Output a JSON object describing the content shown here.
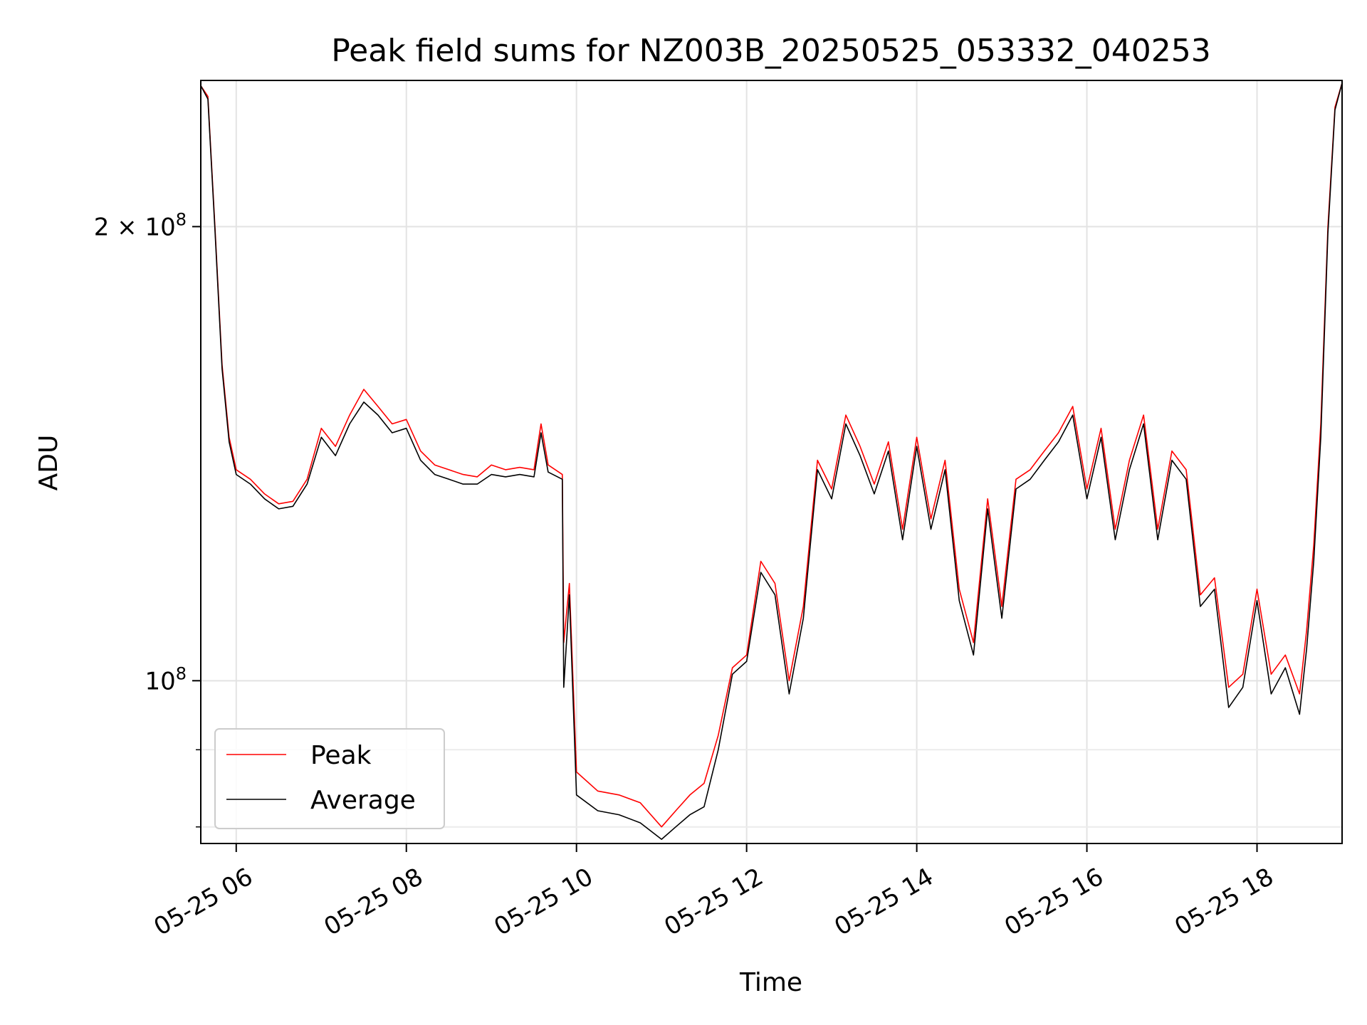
{
  "chart_data": {
    "type": "line",
    "title": "Peak field sums for NZ003B_20250525_053332_040253",
    "xlabel": "Time",
    "ylabel": "ADU",
    "x_range": [
      "2025-05-25 05:35",
      "2025-05-25 19:00"
    ],
    "ylim": [
      78000000,
      250000000
    ],
    "yscale": "log",
    "grid": true,
    "legend_position": "lower-left",
    "x_ticks": [
      "05-25 06",
      "05-25 08",
      "05-25 10",
      "05-25 12",
      "05-25 14",
      "05-25 16",
      "05-25 18"
    ],
    "y_ticks": [
      {
        "value": 100000000,
        "label": "10",
        "exp": "8"
      },
      {
        "value": 200000000,
        "label": "2 × 10",
        "exp": "8"
      }
    ],
    "colors": {
      "peak": "#ff0000",
      "average": "#000000"
    },
    "series": [
      {
        "name": "Peak",
        "color": "#ff0000",
        "points": [
          [
            "05:35",
            248000000
          ],
          [
            "05:40",
            244000000
          ],
          [
            "05:45",
            200000000
          ],
          [
            "05:50",
            162000000
          ],
          [
            "05:55",
            145000000
          ],
          [
            "06:00",
            138000000
          ],
          [
            "06:10",
            136000000
          ],
          [
            "06:20",
            133000000
          ],
          [
            "06:30",
            131000000
          ],
          [
            "06:40",
            131500000
          ],
          [
            "06:50",
            136000000
          ],
          [
            "07:00",
            147000000
          ],
          [
            "07:10",
            143000000
          ],
          [
            "07:20",
            150000000
          ],
          [
            "07:30",
            156000000
          ],
          [
            "07:40",
            152000000
          ],
          [
            "07:50",
            148000000
          ],
          [
            "08:00",
            149000000
          ],
          [
            "08:10",
            142000000
          ],
          [
            "08:20",
            139000000
          ],
          [
            "08:30",
            138000000
          ],
          [
            "08:40",
            137000000
          ],
          [
            "08:50",
            136500000
          ],
          [
            "09:00",
            139000000
          ],
          [
            "09:10",
            138000000
          ],
          [
            "09:20",
            138500000
          ],
          [
            "09:30",
            138000000
          ],
          [
            "09:35",
            148000000
          ],
          [
            "09:40",
            139000000
          ],
          [
            "09:50",
            137000000
          ],
          [
            "09:51",
            106000000
          ],
          [
            "09:55",
            116000000
          ],
          [
            "10:00",
            87000000
          ],
          [
            "10:15",
            84500000
          ],
          [
            "10:30",
            84000000
          ],
          [
            "10:45",
            83000000
          ],
          [
            "11:00",
            80000000
          ],
          [
            "11:10",
            82000000
          ],
          [
            "11:20",
            84000000
          ],
          [
            "11:30",
            85500000
          ],
          [
            "11:40",
            92000000
          ],
          [
            "11:50",
            102000000
          ],
          [
            "12:00",
            104000000
          ],
          [
            "12:10",
            120000000
          ],
          [
            "12:20",
            116000000
          ],
          [
            "12:30",
            100000000
          ],
          [
            "12:40",
            112000000
          ],
          [
            "12:50",
            140000000
          ],
          [
            "13:00",
            134000000
          ],
          [
            "13:10",
            150000000
          ],
          [
            "13:20",
            143000000
          ],
          [
            "13:30",
            135000000
          ],
          [
            "13:40",
            144000000
          ],
          [
            "13:50",
            126000000
          ],
          [
            "14:00",
            145000000
          ],
          [
            "14:10",
            128000000
          ],
          [
            "14:20",
            140000000
          ],
          [
            "14:30",
            115000000
          ],
          [
            "14:40",
            106000000
          ],
          [
            "14:50",
            132000000
          ],
          [
            "15:00",
            112000000
          ],
          [
            "15:10",
            136000000
          ],
          [
            "15:20",
            138000000
          ],
          [
            "15:30",
            142000000
          ],
          [
            "15:40",
            146000000
          ],
          [
            "15:50",
            152000000
          ],
          [
            "16:00",
            134000000
          ],
          [
            "16:10",
            147000000
          ],
          [
            "16:20",
            126000000
          ],
          [
            "16:30",
            140000000
          ],
          [
            "16:40",
            150000000
          ],
          [
            "16:50",
            126000000
          ],
          [
            "17:00",
            142000000
          ],
          [
            "17:10",
            138000000
          ],
          [
            "17:20",
            114000000
          ],
          [
            "17:30",
            117000000
          ],
          [
            "17:40",
            99000000
          ],
          [
            "17:50",
            101000000
          ],
          [
            "18:00",
            115000000
          ],
          [
            "18:10",
            101000000
          ],
          [
            "18:20",
            104000000
          ],
          [
            "18:30",
            98000000
          ],
          [
            "18:35",
            108000000
          ],
          [
            "18:40",
            123000000
          ],
          [
            "18:45",
            148000000
          ],
          [
            "18:50",
            200000000
          ],
          [
            "18:55",
            240000000
          ],
          [
            "19:00",
            249000000
          ]
        ]
      },
      {
        "name": "Average",
        "color": "#000000",
        "points": [
          [
            "05:35",
            248000000
          ],
          [
            "05:40",
            243000000
          ],
          [
            "05:45",
            199000000
          ],
          [
            "05:50",
            161000000
          ],
          [
            "05:55",
            144000000
          ],
          [
            "06:00",
            137000000
          ],
          [
            "06:10",
            135000000
          ],
          [
            "06:20",
            132000000
          ],
          [
            "06:30",
            130000000
          ],
          [
            "06:40",
            130500000
          ],
          [
            "06:50",
            135000000
          ],
          [
            "07:00",
            145000000
          ],
          [
            "07:10",
            141000000
          ],
          [
            "07:20",
            148000000
          ],
          [
            "07:30",
            153000000
          ],
          [
            "07:40",
            150000000
          ],
          [
            "07:50",
            146000000
          ],
          [
            "08:00",
            147000000
          ],
          [
            "08:10",
            140000000
          ],
          [
            "08:20",
            137000000
          ],
          [
            "08:30",
            136000000
          ],
          [
            "08:40",
            135000000
          ],
          [
            "08:50",
            135000000
          ],
          [
            "09:00",
            137000000
          ],
          [
            "09:10",
            136500000
          ],
          [
            "09:20",
            137000000
          ],
          [
            "09:30",
            136500000
          ],
          [
            "09:35",
            146000000
          ],
          [
            "09:40",
            137500000
          ],
          [
            "09:50",
            136000000
          ],
          [
            "09:51",
            99000000
          ],
          [
            "09:55",
            114000000
          ],
          [
            "10:00",
            84000000
          ],
          [
            "10:15",
            82000000
          ],
          [
            "10:30",
            81500000
          ],
          [
            "10:45",
            80500000
          ],
          [
            "11:00",
            78500000
          ],
          [
            "11:10",
            80000000
          ],
          [
            "11:20",
            81500000
          ],
          [
            "11:30",
            82500000
          ],
          [
            "11:40",
            90000000
          ],
          [
            "11:50",
            101000000
          ],
          [
            "12:00",
            103000000
          ],
          [
            "12:10",
            118000000
          ],
          [
            "12:20",
            114000000
          ],
          [
            "12:30",
            98000000
          ],
          [
            "12:40",
            110000000
          ],
          [
            "12:50",
            138000000
          ],
          [
            "13:00",
            132000000
          ],
          [
            "13:10",
            148000000
          ],
          [
            "13:20",
            141000000
          ],
          [
            "13:30",
            133000000
          ],
          [
            "13:40",
            142000000
          ],
          [
            "13:50",
            124000000
          ],
          [
            "14:00",
            143000000
          ],
          [
            "14:10",
            126000000
          ],
          [
            "14:20",
            138000000
          ],
          [
            "14:30",
            113000000
          ],
          [
            "14:40",
            104000000
          ],
          [
            "14:50",
            130000000
          ],
          [
            "15:00",
            110000000
          ],
          [
            "15:10",
            134000000
          ],
          [
            "15:20",
            136000000
          ],
          [
            "15:30",
            140000000
          ],
          [
            "15:40",
            144000000
          ],
          [
            "15:50",
            150000000
          ],
          [
            "16:00",
            132000000
          ],
          [
            "16:10",
            145000000
          ],
          [
            "16:20",
            124000000
          ],
          [
            "16:30",
            138000000
          ],
          [
            "16:40",
            148000000
          ],
          [
            "16:50",
            124000000
          ],
          [
            "17:00",
            140000000
          ],
          [
            "17:10",
            136000000
          ],
          [
            "17:20",
            112000000
          ],
          [
            "17:30",
            115000000
          ],
          [
            "17:40",
            96000000
          ],
          [
            "17:50",
            99000000
          ],
          [
            "18:00",
            113000000
          ],
          [
            "18:10",
            98000000
          ],
          [
            "18:20",
            102000000
          ],
          [
            "18:30",
            95000000
          ],
          [
            "18:35",
            105000000
          ],
          [
            "18:40",
            120000000
          ],
          [
            "18:45",
            145000000
          ],
          [
            "18:50",
            198000000
          ],
          [
            "18:55",
            239000000
          ],
          [
            "19:00",
            249000000
          ]
        ]
      }
    ]
  }
}
